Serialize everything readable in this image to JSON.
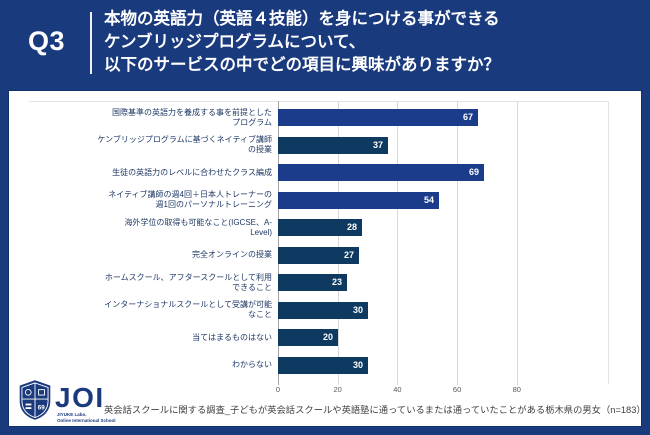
{
  "header": {
    "question_number": "Q3",
    "title": "本物の英語力（英語４技能）を身につける事ができる\nケンブリッジプログラムについて、\n以下のサービスの中でどの項目に興味がありますか？"
  },
  "chart_data": {
    "type": "bar",
    "orientation": "horizontal",
    "title": "",
    "xlabel": "",
    "ylabel": "",
    "xlim": [
      0,
      110
    ],
    "x_ticks": [
      0,
      20,
      40,
      60,
      80
    ],
    "grid": "vertical gridlines at ticks, light gray",
    "legend": "none",
    "value_label_position": "inside bar end, white bold",
    "colors": {
      "highlight": "#1B3B8B",
      "normal": "#0E3A61"
    },
    "categories": [
      {
        "label": "国際基準の英語力を養成する事を前提としたプログラム",
        "lines": [
          "国際基準の英語力を養成する事を前提とした",
          "プログラム"
        ],
        "value": 67,
        "highlight": true
      },
      {
        "label": "ケンブリッジプログラムに基づくネイティブ講師の授業",
        "lines": [
          "ケンブリッジプログラムに基づくネイティブ講師",
          "の授業"
        ],
        "value": 37,
        "highlight": false
      },
      {
        "label": "生徒の英語力のレベルに合わせたクラス編成",
        "lines": [
          "生徒の英語力のレベルに合わせたクラス編成"
        ],
        "value": 69,
        "highlight": true
      },
      {
        "label": "ネイティブ講師の週4回＋日本人トレーナーの週1回のパーソナルトレーニング",
        "lines": [
          "ネイティブ講師の週4回＋日本人トレーナーの",
          "週1回のパーソナルトレーニング"
        ],
        "value": 54,
        "highlight": true
      },
      {
        "label": "海外学位の取得も可能なこと(IGCSE、A-Level)",
        "lines": [
          "海外学位の取得も可能なこと(IGCSE、A-",
          "Level)"
        ],
        "value": 28,
        "highlight": false
      },
      {
        "label": "完全オンラインの授業",
        "lines": [
          "完全オンラインの授業"
        ],
        "value": 27,
        "highlight": false
      },
      {
        "label": "ホームスクール、アフタースクールとして利用できること",
        "lines": [
          "ホームスクール、アフタースクールとして利用",
          "できること"
        ],
        "value": 23,
        "highlight": false
      },
      {
        "label": "インターナショナルスクールとして受講が可能なこと",
        "lines": [
          "インターナショナルスクールとして受講が可能",
          "なこと"
        ],
        "value": 30,
        "highlight": false
      },
      {
        "label": "当てはまるものはない",
        "lines": [
          "当てはまるものはない"
        ],
        "value": 20,
        "highlight": false
      },
      {
        "label": "わからない",
        "lines": [
          "わからない"
        ],
        "value": 30,
        "highlight": false
      }
    ]
  },
  "footer": {
    "logo_text": "JOI",
    "logo_subtext": "JIYUKE Labo.\nOnline International School",
    "source": "英会話スクールに関する調査_子どもが英会話スクールや英語塾に通っているまたは通っていたことがある栃木県の男女（n=183）"
  },
  "colors": {
    "frame_background": "#1A3A7E",
    "panel_background": "#FFFFFF",
    "bar_highlight": "#1B3B8B",
    "bar_normal": "#0E3A61",
    "category_label": "#1F3864",
    "tick_label": "#595959",
    "gridline": "#D9D9D9",
    "value_label": "#FFFFFF",
    "source_text": "#404040"
  }
}
